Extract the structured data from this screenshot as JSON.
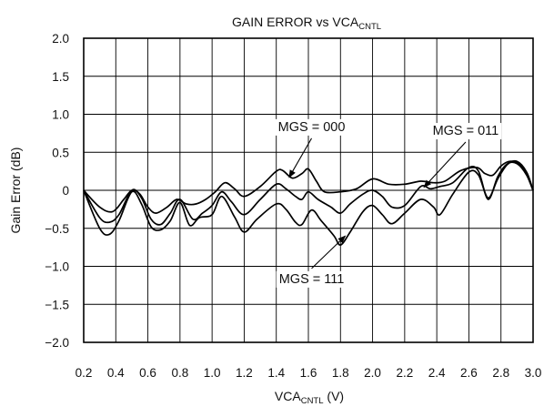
{
  "chart_data": {
    "type": "line",
    "title": "GAIN ERROR vs VCA",
    "title_sub": "CNTL",
    "xlabel": "VCA",
    "xlabel_sub": "CNTL",
    "xlabel_unit": " (V)",
    "ylabel": "Gain Error (dB)",
    "xlim": [
      0.2,
      3.0
    ],
    "ylim": [
      -2.0,
      2.0
    ],
    "grid": true,
    "x_ticks": [
      0.2,
      0.4,
      0.6,
      0.8,
      1.0,
      1.2,
      1.4,
      1.6,
      1.8,
      2.0,
      2.2,
      2.4,
      2.6,
      2.8,
      3.0
    ],
    "x_tick_labels": [
      "0.2",
      "0.4",
      "0.6",
      "0.8",
      "1.0",
      "1.2",
      "1.4",
      "1.6",
      "1.8",
      "2.0",
      "2.2",
      "2.4",
      "2.6",
      "2.8",
      "3.0"
    ],
    "y_ticks": [
      -2.0,
      -1.5,
      -1.0,
      -0.5,
      0,
      0.5,
      1.0,
      1.5,
      2.0
    ],
    "y_tick_labels": [
      "−2.0",
      "−1.5",
      "−1.0",
      "−0.5",
      "0",
      "0.5",
      "1.0",
      "1.5",
      "2.0"
    ],
    "series": [
      {
        "name": "MGS = 000",
        "points": [
          [
            0.2,
            0.0
          ],
          [
            0.3,
            -0.22
          ],
          [
            0.38,
            -0.28
          ],
          [
            0.45,
            -0.12
          ],
          [
            0.5,
            0.0
          ],
          [
            0.55,
            -0.05
          ],
          [
            0.6,
            -0.22
          ],
          [
            0.65,
            -0.3
          ],
          [
            0.72,
            -0.22
          ],
          [
            0.78,
            -0.12
          ],
          [
            0.84,
            -0.18
          ],
          [
            0.9,
            -0.18
          ],
          [
            0.96,
            -0.12
          ],
          [
            1.02,
            -0.02
          ],
          [
            1.08,
            0.1
          ],
          [
            1.14,
            0.02
          ],
          [
            1.2,
            -0.08
          ],
          [
            1.3,
            0.05
          ],
          [
            1.4,
            0.25
          ],
          [
            1.44,
            0.26
          ],
          [
            1.5,
            0.16
          ],
          [
            1.56,
            0.22
          ],
          [
            1.6,
            0.28
          ],
          [
            1.65,
            0.12
          ],
          [
            1.7,
            -0.02
          ],
          [
            1.8,
            -0.02
          ],
          [
            1.9,
            0.02
          ],
          [
            2.0,
            0.15
          ],
          [
            2.1,
            0.08
          ],
          [
            2.2,
            0.08
          ],
          [
            2.3,
            0.12
          ],
          [
            2.38,
            0.1
          ],
          [
            2.45,
            0.12
          ],
          [
            2.55,
            0.26
          ],
          [
            2.65,
            0.3
          ],
          [
            2.7,
            0.22
          ],
          [
            2.75,
            0.2
          ],
          [
            2.8,
            0.32
          ],
          [
            2.85,
            0.38
          ],
          [
            2.9,
            0.36
          ],
          [
            2.95,
            0.25
          ],
          [
            3.0,
            0.0
          ]
        ]
      },
      {
        "name": "MGS = 011",
        "points": [
          [
            0.2,
            0.0
          ],
          [
            0.3,
            -0.36
          ],
          [
            0.36,
            -0.42
          ],
          [
            0.42,
            -0.32
          ],
          [
            0.5,
            0.0
          ],
          [
            0.56,
            -0.1
          ],
          [
            0.62,
            -0.38
          ],
          [
            0.68,
            -0.45
          ],
          [
            0.74,
            -0.3
          ],
          [
            0.8,
            -0.12
          ],
          [
            0.88,
            -0.38
          ],
          [
            0.94,
            -0.3
          ],
          [
            1.0,
            -0.2
          ],
          [
            1.06,
            -0.02
          ],
          [
            1.12,
            -0.15
          ],
          [
            1.2,
            -0.32
          ],
          [
            1.3,
            -0.12
          ],
          [
            1.4,
            0.08
          ],
          [
            1.46,
            0.02
          ],
          [
            1.52,
            -0.08
          ],
          [
            1.56,
            -0.12
          ],
          [
            1.6,
            -0.02
          ],
          [
            1.66,
            -0.12
          ],
          [
            1.74,
            -0.22
          ],
          [
            1.8,
            -0.3
          ],
          [
            1.86,
            -0.18
          ],
          [
            1.94,
            -0.05
          ],
          [
            2.0,
            0.0
          ],
          [
            2.06,
            -0.08
          ],
          [
            2.12,
            -0.22
          ],
          [
            2.2,
            -0.2
          ],
          [
            2.3,
            0.05
          ],
          [
            2.36,
            0.02
          ],
          [
            2.42,
            0.05
          ],
          [
            2.5,
            0.1
          ],
          [
            2.6,
            0.3
          ],
          [
            2.66,
            0.25
          ],
          [
            2.72,
            -0.12
          ],
          [
            2.78,
            0.18
          ],
          [
            2.84,
            0.35
          ],
          [
            2.9,
            0.35
          ],
          [
            2.96,
            0.2
          ],
          [
            3.0,
            0.0
          ]
        ]
      },
      {
        "name": "MGS = 111",
        "points": [
          [
            0.2,
            0.0
          ],
          [
            0.3,
            -0.5
          ],
          [
            0.36,
            -0.58
          ],
          [
            0.42,
            -0.4
          ],
          [
            0.5,
            -0.02
          ],
          [
            0.56,
            -0.18
          ],
          [
            0.62,
            -0.48
          ],
          [
            0.68,
            -0.52
          ],
          [
            0.74,
            -0.4
          ],
          [
            0.8,
            -0.16
          ],
          [
            0.86,
            -0.46
          ],
          [
            0.92,
            -0.36
          ],
          [
            1.0,
            -0.32
          ],
          [
            1.06,
            -0.08
          ],
          [
            1.14,
            -0.35
          ],
          [
            1.2,
            -0.55
          ],
          [
            1.28,
            -0.38
          ],
          [
            1.4,
            -0.18
          ],
          [
            1.46,
            -0.25
          ],
          [
            1.52,
            -0.42
          ],
          [
            1.56,
            -0.45
          ],
          [
            1.62,
            -0.26
          ],
          [
            1.68,
            -0.4
          ],
          [
            1.76,
            -0.6
          ],
          [
            1.8,
            -0.72
          ],
          [
            1.86,
            -0.55
          ],
          [
            1.94,
            -0.28
          ],
          [
            2.0,
            -0.2
          ],
          [
            2.06,
            -0.32
          ],
          [
            2.12,
            -0.44
          ],
          [
            2.2,
            -0.3
          ],
          [
            2.3,
            -0.12
          ],
          [
            2.38,
            -0.22
          ],
          [
            2.42,
            -0.32
          ],
          [
            2.5,
            -0.05
          ],
          [
            2.6,
            0.24
          ],
          [
            2.66,
            0.2
          ],
          [
            2.72,
            -0.1
          ],
          [
            2.78,
            0.15
          ],
          [
            2.84,
            0.34
          ],
          [
            2.9,
            0.38
          ],
          [
            2.96,
            0.24
          ],
          [
            3.0,
            0.0
          ]
        ]
      }
    ],
    "annotations": [
      {
        "text": "MGS = 000",
        "label_at": [
          1.62,
          0.78
        ],
        "arrow_to": [
          1.48,
          0.17
        ]
      },
      {
        "text": "MGS = 011",
        "label_at": [
          2.58,
          0.73
        ],
        "arrow_to": [
          2.32,
          0.04
        ]
      },
      {
        "text": "MGS = 111",
        "label_at": [
          1.62,
          -1.22
        ],
        "arrow_to": [
          1.83,
          -0.6
        ]
      }
    ]
  }
}
